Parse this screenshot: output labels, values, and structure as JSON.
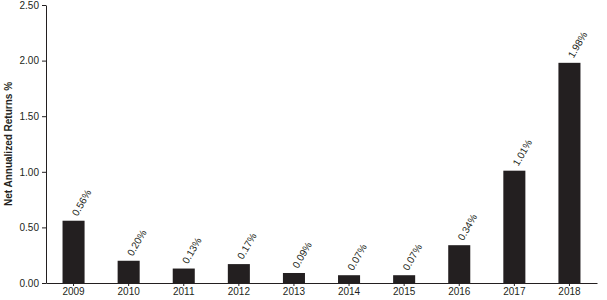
{
  "chart_data": {
    "type": "bar",
    "y_label": "Net Annualized Returns %",
    "categories": [
      "2009",
      "2010",
      "2011",
      "2012",
      "2013",
      "2014",
      "2015",
      "2016",
      "2017",
      "2018"
    ],
    "values": [
      0.56,
      0.2,
      0.13,
      0.17,
      0.09,
      0.07,
      0.07,
      0.34,
      1.01,
      1.98
    ],
    "value_labels": [
      "0.56%",
      "0.20%",
      "0.13%",
      "0.17%",
      "0.09%",
      "0.07%",
      "0.07%",
      "0.34%",
      "1.01%",
      "1.98%"
    ],
    "data_labels": true,
    "color": "#231f20",
    "ylim": [
      0,
      2.5
    ],
    "yticks": [
      {
        "value": 0,
        "label": "0.00"
      },
      {
        "value": 0.5,
        "label": "0.50"
      },
      {
        "value": 1,
        "label": "1.00"
      },
      {
        "value": 1.5,
        "label": "1.50"
      },
      {
        "value": 2,
        "label": "2.00"
      },
      {
        "value": 2.5,
        "label": "2.50"
      }
    ],
    "grid": false
  }
}
